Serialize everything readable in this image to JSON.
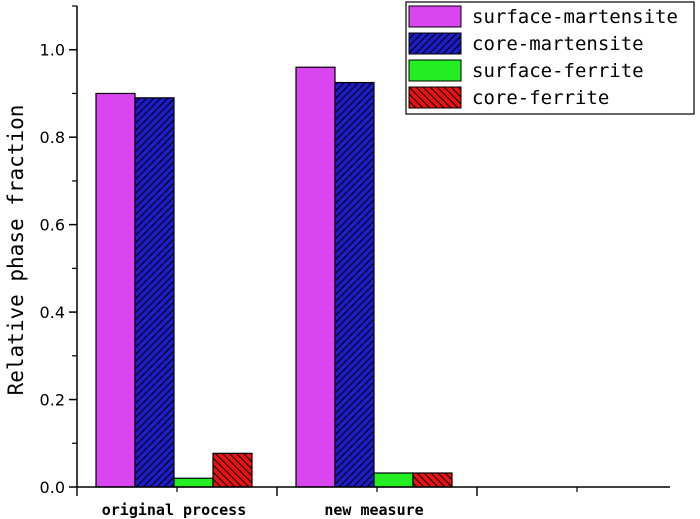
{
  "chart_data": {
    "type": "bar",
    "categories": [
      "original process",
      "new measure"
    ],
    "series": [
      {
        "name": "surface-martensite",
        "values": [
          0.9,
          0.96
        ],
        "color": "#d946ef",
        "hatch": "none"
      },
      {
        "name": "core-martensite",
        "values": [
          0.89,
          0.925
        ],
        "color": "#1c1cc8",
        "hatch": "diag-rtl"
      },
      {
        "name": "surface-ferrite",
        "values": [
          0.02,
          0.032
        ],
        "color": "#22ee22",
        "hatch": "none"
      },
      {
        "name": "core-ferrite",
        "values": [
          0.077,
          0.032
        ],
        "color": "#ee1111",
        "hatch": "diag-ltr"
      }
    ],
    "title": "",
    "xlabel": "",
    "ylabel": "Relative phase fraction",
    "ylim": [
      0,
      1.1
    ],
    "yticks": [
      "0.0",
      "0.2",
      "0.4",
      "0.6",
      "0.8",
      "1.0"
    ],
    "grid": false,
    "legend_position": "top-right"
  }
}
